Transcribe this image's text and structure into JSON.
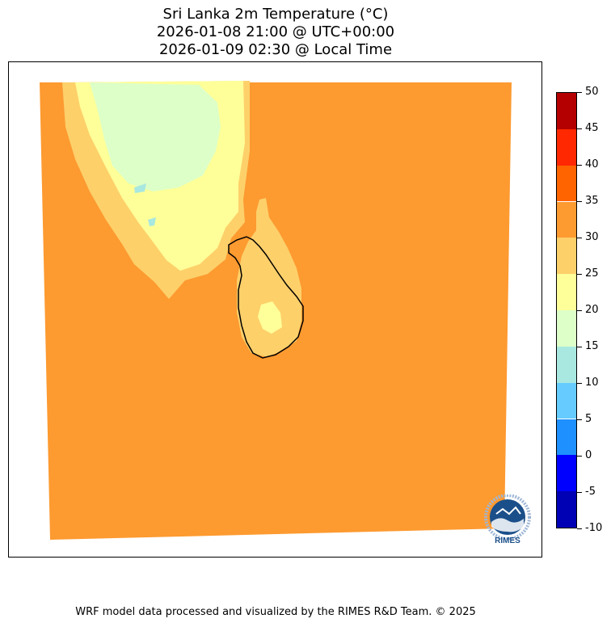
{
  "title": {
    "line1": "Sri Lanka 2m Temperature (°C)",
    "line2": "2026-01-08 21:00 @ UTC+00:00",
    "line3": "2026-01-09 02:30 @ Local Time"
  },
  "colorbar": {
    "levels": [
      {
        "min": -10,
        "max": -5,
        "color": "#0000b4"
      },
      {
        "min": -5,
        "max": 0,
        "color": "#0000ff"
      },
      {
        "min": 0,
        "max": 5,
        "color": "#1e90ff"
      },
      {
        "min": 5,
        "max": 10,
        "color": "#66ccff"
      },
      {
        "min": 10,
        "max": 15,
        "color": "#a8e8e0"
      },
      {
        "min": 15,
        "max": 20,
        "color": "#ddffc8"
      },
      {
        "min": 20,
        "max": 25,
        "color": "#ffff99"
      },
      {
        "min": 25,
        "max": 30,
        "color": "#fdd06a"
      },
      {
        "min": 30,
        "max": 35,
        "color": "#fd9a30"
      },
      {
        "min": 35,
        "max": 40,
        "color": "#ff6400"
      },
      {
        "min": 40,
        "max": 45,
        "color": "#ff2800"
      },
      {
        "min": 45,
        "max": 50,
        "color": "#b40000"
      }
    ],
    "tick_labels": [
      "50",
      "45",
      "40",
      "35",
      "30",
      "25",
      "20",
      "15",
      "10",
      "5",
      "0",
      "-5",
      "-10"
    ]
  },
  "map": {
    "field_colors": {
      "sea": "#fd9a30",
      "warm": "#fdd06a",
      "mild": "#ffff99",
      "cool": "#ddffc8",
      "cold": "#a8e8e0",
      "coast": "#000000"
    }
  },
  "logo": {
    "text": "RIMES",
    "icon": "rimes-logo-icon"
  },
  "footer": {
    "credit": "WRF model data processed and visualized by the RIMES R&D Team. © 2025"
  }
}
